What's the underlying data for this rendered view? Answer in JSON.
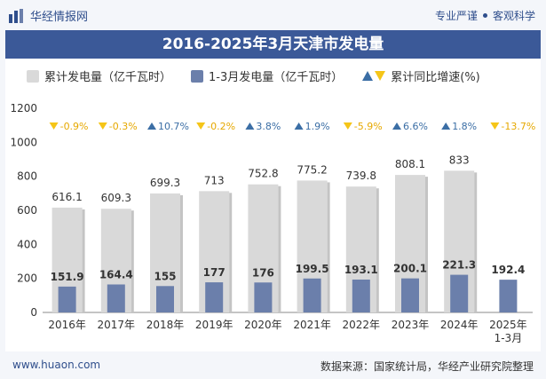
{
  "header": {
    "logo_text": "华经情报网",
    "slogan_left": "专业严谨",
    "slogan_right": "客观科学"
  },
  "colors": {
    "title_bg": "#3b5998",
    "cumulative_bar": "#d9d9d9",
    "q1_bar": "#6b7fab",
    "growth_up": "#3b6ea5",
    "growth_down": "#f5c518"
  },
  "chart_data": {
    "type": "bar",
    "title": "2016-2025年3月天津市发电量",
    "categories": [
      "2016年",
      "2017年",
      "2018年",
      "2019年",
      "2020年",
      "2021年",
      "2022年",
      "2023年",
      "2024年",
      "2025年\n1-3月"
    ],
    "series": [
      {
        "name": "累计发电量（亿千瓦时）",
        "values": [
          616.1,
          609.3,
          699.3,
          713,
          752.8,
          775.2,
          739.8,
          808.1,
          833,
          null
        ]
      },
      {
        "name": "1-3月发电量（亿千瓦时）",
        "values": [
          151.9,
          164.4,
          155,
          177,
          176,
          199.5,
          193.1,
          200.1,
          221.3,
          192.4
        ]
      }
    ],
    "growth": {
      "name": "累计同比增速(%)",
      "values": [
        -0.9,
        -0.3,
        10.7,
        -0.2,
        3.8,
        1.9,
        -5.9,
        6.6,
        1.8,
        -13.7
      ],
      "labels": [
        "-0.9%",
        "-0.3%",
        "10.7%",
        "-0.2%",
        "3.8%",
        "1.9%",
        "-5.9%",
        "6.6%",
        "1.8%",
        "-13.7%"
      ]
    },
    "ylim": [
      0,
      1200
    ],
    "yticks": [
      0,
      200,
      400,
      600,
      800,
      1000,
      1200
    ],
    "legend_position": "top",
    "grid": false
  },
  "footer": {
    "website": "www.huaon.com",
    "source": "数据来源：国家统计局，华经产业研究院整理"
  }
}
